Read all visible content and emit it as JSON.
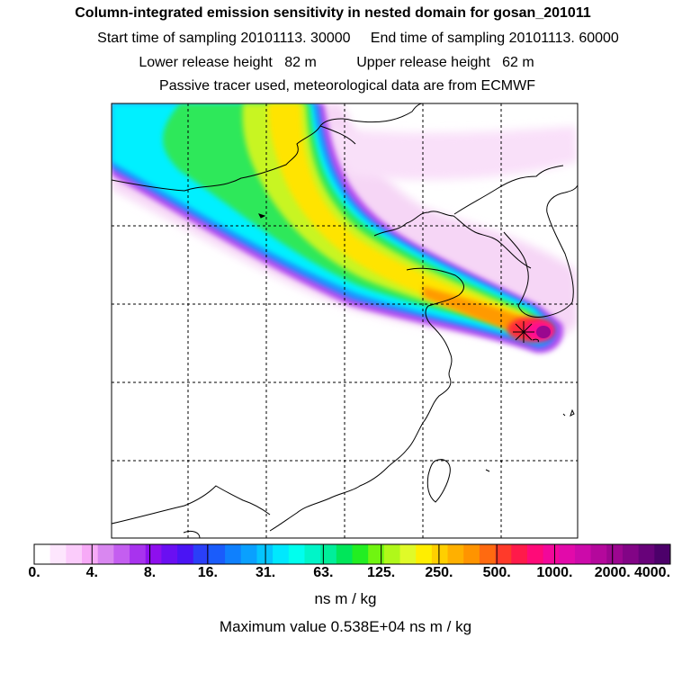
{
  "titles": {
    "line1": "Column-integrated emission sensitivity in nested domain for gosan_201011",
    "line2": "Start time of sampling 20101113. 30000     End time of sampling 20101113. 60000",
    "line3": "Lower release height   82 m          Upper release height   62 m",
    "line4": "Passive tracer used, meteorological data are from ECMWF"
  },
  "chart_data": {
    "type": "heatmap",
    "title": "Column-integrated emission sensitivity in nested domain for gosan_201011",
    "receptor": "gosan",
    "colorbar": {
      "tick_labels": [
        "0.",
        "4.",
        "8.",
        "16.",
        "31.",
        "63.",
        "125.",
        "250.",
        "500.",
        "1000.",
        "2000.",
        "4000."
      ],
      "colors": [
        "#ffffff",
        "#fde6fd",
        "#fbccfb",
        "#f7aaf7",
        "#d987f0",
        "#c45ef0",
        "#a833ee",
        "#8e0fee",
        "#6a0ff2",
        "#4a14f4",
        "#2a3ff8",
        "#1a5cfb",
        "#0f80fd",
        "#0aa0fe",
        "#05c4fe",
        "#00e8fe",
        "#00ffee",
        "#00f5c8",
        "#00ee9a",
        "#00e65a",
        "#22ee22",
        "#70f510",
        "#b0f81a",
        "#e0fa28",
        "#ffee00",
        "#ffcf00",
        "#ffb000",
        "#ff9400",
        "#ff6a10",
        "#ff3a2a",
        "#ff1a4a",
        "#ff0a78",
        "#f2089a",
        "#e20aaa",
        "#cc0aaa",
        "#b4089c",
        "#9c0690",
        "#820486",
        "#68027a",
        "#4c006a"
      ]
    },
    "units": "ns m / kg",
    "maximum_value_text": "Maximum value  0.538E+04 ns m / kg"
  }
}
